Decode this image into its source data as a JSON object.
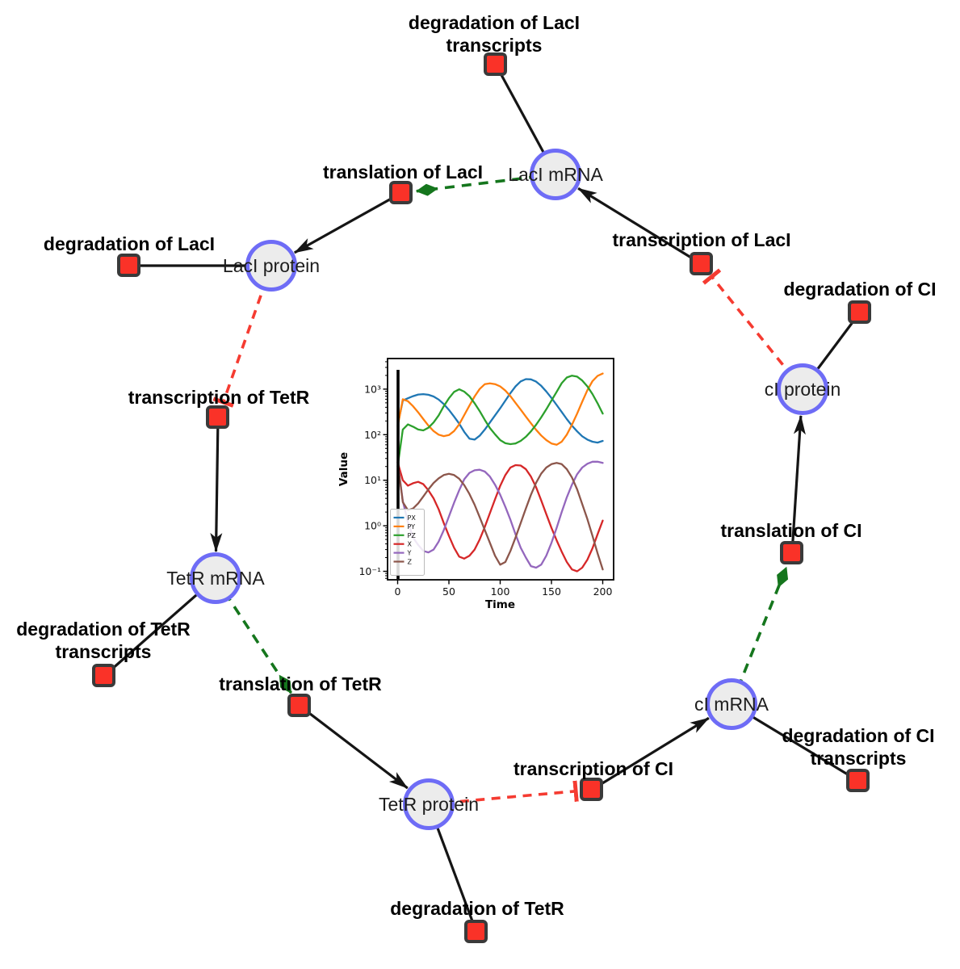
{
  "figure": {
    "background": "#ffffff",
    "description_colors": {
      "species_fill": "#ececec",
      "species_border": "#6e6cf6",
      "reaction_fill": "#fa3228",
      "reaction_border": "#3a3a3a",
      "production_edge": "#151515",
      "modifier_edge": "#15761d",
      "inhibition_edge": "#f53b31"
    }
  },
  "network": {
    "nodes": [
      {
        "id": "lacI_mRNA",
        "kind": "species",
        "label": [
          "LacI mRNA"
        ]
      },
      {
        "id": "lacI_protein",
        "kind": "species",
        "label": [
          "LacI protein"
        ]
      },
      {
        "id": "tetR_mRNA",
        "kind": "species",
        "label": [
          "TetR mRNA"
        ]
      },
      {
        "id": "tetR_protein",
        "kind": "species",
        "label": [
          "TetR protein"
        ]
      },
      {
        "id": "cI_mRNA",
        "kind": "species",
        "label": [
          "cI mRNA"
        ]
      },
      {
        "id": "cI_protein",
        "kind": "species",
        "label": [
          "cI protein"
        ]
      },
      {
        "id": "deg_lacI_tx",
        "kind": "reaction",
        "label": [
          "degradation of LacI",
          "transcripts"
        ]
      },
      {
        "id": "tln_lacI",
        "kind": "reaction",
        "label": [
          "translation of LacI"
        ]
      },
      {
        "id": "txn_lacI",
        "kind": "reaction",
        "label": [
          "transcription of LacI"
        ]
      },
      {
        "id": "deg_lacI",
        "kind": "reaction",
        "label": [
          "degradation of LacI"
        ]
      },
      {
        "id": "txn_tetR",
        "kind": "reaction",
        "label": [
          "transcription of TetR"
        ]
      },
      {
        "id": "deg_cI",
        "kind": "reaction",
        "label": [
          "degradation of CI"
        ]
      },
      {
        "id": "tln_cI",
        "kind": "reaction",
        "label": [
          "translation of CI"
        ]
      },
      {
        "id": "deg_tetR_tx",
        "kind": "reaction",
        "label": [
          "degradation of TetR",
          "transcripts"
        ]
      },
      {
        "id": "tln_tetR",
        "kind": "reaction",
        "label": [
          "translation of TetR"
        ]
      },
      {
        "id": "txn_cI",
        "kind": "reaction",
        "label": [
          "transcription of CI"
        ]
      },
      {
        "id": "deg_cI_tx",
        "kind": "reaction",
        "label": [
          "degradation of CI",
          "transcripts"
        ]
      },
      {
        "id": "deg_tetR",
        "kind": "reaction",
        "label": [
          "degradation of TetR"
        ]
      }
    ],
    "edges": [
      {
        "from": "lacI_mRNA",
        "to": "deg_lacI_tx",
        "type": "consumption"
      },
      {
        "from": "lacI_protein",
        "to": "deg_lacI",
        "type": "consumption"
      },
      {
        "from": "tetR_mRNA",
        "to": "deg_tetR_tx",
        "type": "consumption"
      },
      {
        "from": "tetR_protein",
        "to": "deg_tetR",
        "type": "consumption"
      },
      {
        "from": "cI_mRNA",
        "to": "deg_cI_tx",
        "type": "consumption"
      },
      {
        "from": "cI_protein",
        "to": "deg_cI",
        "type": "consumption"
      },
      {
        "from": "txn_lacI",
        "to": "lacI_mRNA",
        "type": "production"
      },
      {
        "from": "tln_lacI",
        "to": "lacI_protein",
        "type": "production"
      },
      {
        "from": "txn_tetR",
        "to": "tetR_mRNA",
        "type": "production"
      },
      {
        "from": "tln_tetR",
        "to": "tetR_protein",
        "type": "production"
      },
      {
        "from": "txn_cI",
        "to": "cI_mRNA",
        "type": "production"
      },
      {
        "from": "tln_cI",
        "to": "cI_protein",
        "type": "production"
      },
      {
        "from": "lacI_mRNA",
        "to": "tln_lacI",
        "type": "modifier"
      },
      {
        "from": "tetR_mRNA",
        "to": "tln_tetR",
        "type": "modifier"
      },
      {
        "from": "cI_mRNA",
        "to": "tln_cI",
        "type": "modifier"
      },
      {
        "from": "lacI_protein",
        "to": "txn_tetR",
        "type": "inhibition"
      },
      {
        "from": "tetR_protein",
        "to": "txn_cI",
        "type": "inhibition"
      },
      {
        "from": "cI_protein",
        "to": "txn_lacI",
        "type": "inhibition"
      }
    ]
  },
  "chart_data": {
    "type": "line",
    "title": "",
    "xlabel": "Time",
    "ylabel": "Value",
    "y_scale": "log",
    "xlim": [
      -10,
      210
    ],
    "ylim": [
      0.065,
      4700
    ],
    "x_ticks": [
      0,
      50,
      100,
      150,
      200
    ],
    "x_tick_labels": [
      "0",
      "50",
      "100",
      "150",
      "200"
    ],
    "y_tick_labels": [
      "10⁻¹",
      "10⁰",
      "10¹",
      "10²",
      "10³"
    ],
    "legend_position": "lower left",
    "grid": false,
    "annotations": [
      {
        "type": "vline",
        "x": 0,
        "color": "#000000"
      }
    ],
    "x": [
      0,
      5,
      10,
      15,
      20,
      25,
      30,
      35,
      40,
      45,
      50,
      55,
      60,
      65,
      70,
      75,
      80,
      85,
      90,
      95,
      100,
      105,
      110,
      115,
      120,
      125,
      130,
      135,
      140,
      145,
      150,
      155,
      160,
      165,
      170,
      175,
      180,
      185,
      190,
      195,
      200
    ],
    "series": [
      {
        "name": "PX",
        "color": "#1f77b4",
        "values": [
          160,
          560,
          630,
          700,
          760,
          775,
          750,
          690,
          590,
          470,
          350,
          250,
          175,
          115,
          82,
          78,
          95,
          130,
          185,
          265,
          380,
          560,
          820,
          1150,
          1480,
          1660,
          1640,
          1460,
          1180,
          890,
          640,
          450,
          315,
          220,
          158,
          118,
          92,
          78,
          70,
          67,
          73
        ]
      },
      {
        "name": "PY",
        "color": "#ff7f0e",
        "values": [
          150,
          600,
          545,
          420,
          310,
          220,
          158,
          120,
          100,
          93,
          98,
          120,
          168,
          270,
          435,
          690,
          1010,
          1290,
          1340,
          1290,
          1150,
          930,
          700,
          500,
          355,
          250,
          178,
          128,
          96,
          76,
          64,
          60,
          70,
          100,
          165,
          290,
          530,
          950,
          1500,
          1950,
          2200
        ]
      },
      {
        "name": "PZ",
        "color": "#2ca02c",
        "values": [
          20,
          130,
          168,
          150,
          130,
          124,
          142,
          185,
          265,
          420,
          630,
          870,
          990,
          880,
          700,
          490,
          330,
          210,
          140,
          102,
          76,
          65,
          62,
          64,
          73,
          90,
          118,
          165,
          240,
          360,
          560,
          870,
          1350,
          1800,
          1980,
          1880,
          1550,
          1150,
          780,
          490,
          290
        ]
      },
      {
        "name": "X",
        "color": "#d62728",
        "values": [
          25,
          10,
          7.6,
          8.6,
          9.2,
          8.2,
          6.0,
          4.0,
          2.3,
          1.15,
          0.6,
          0.33,
          0.21,
          0.19,
          0.22,
          0.3,
          0.5,
          0.95,
          1.9,
          3.8,
          7.5,
          13,
          19,
          21.5,
          21,
          17.5,
          12,
          7,
          3.6,
          1.8,
          0.9,
          0.48,
          0.27,
          0.16,
          0.11,
          0.1,
          0.12,
          0.18,
          0.32,
          0.65,
          1.3
        ]
      },
      {
        "name": "Y",
        "color": "#9467bd",
        "values": [
          25,
          3.5,
          1.2,
          0.55,
          0.38,
          0.28,
          0.26,
          0.3,
          0.45,
          0.8,
          1.6,
          3.2,
          6.0,
          10.5,
          14.5,
          16.5,
          17,
          15.5,
          12,
          8,
          4.8,
          2.6,
          1.35,
          0.65,
          0.33,
          0.2,
          0.13,
          0.12,
          0.14,
          0.22,
          0.42,
          0.9,
          2.0,
          4.2,
          8.0,
          13.5,
          19,
          23,
          25.5,
          25.5,
          24
        ]
      },
      {
        "name": "Z",
        "color": "#8c564b",
        "values": [
          25,
          3.3,
          2.2,
          2.4,
          3.1,
          4.4,
          6.3,
          8.7,
          11,
          13,
          13.8,
          13,
          10.8,
          7.8,
          5.0,
          2.9,
          1.55,
          0.8,
          0.42,
          0.22,
          0.14,
          0.16,
          0.28,
          0.55,
          1.15,
          2.4,
          4.8,
          8.8,
          14,
          19,
          22.5,
          24,
          22.5,
          17.5,
          11.5,
          6.3,
          3.0,
          1.4,
          0.6,
          0.25,
          0.11
        ]
      }
    ]
  }
}
